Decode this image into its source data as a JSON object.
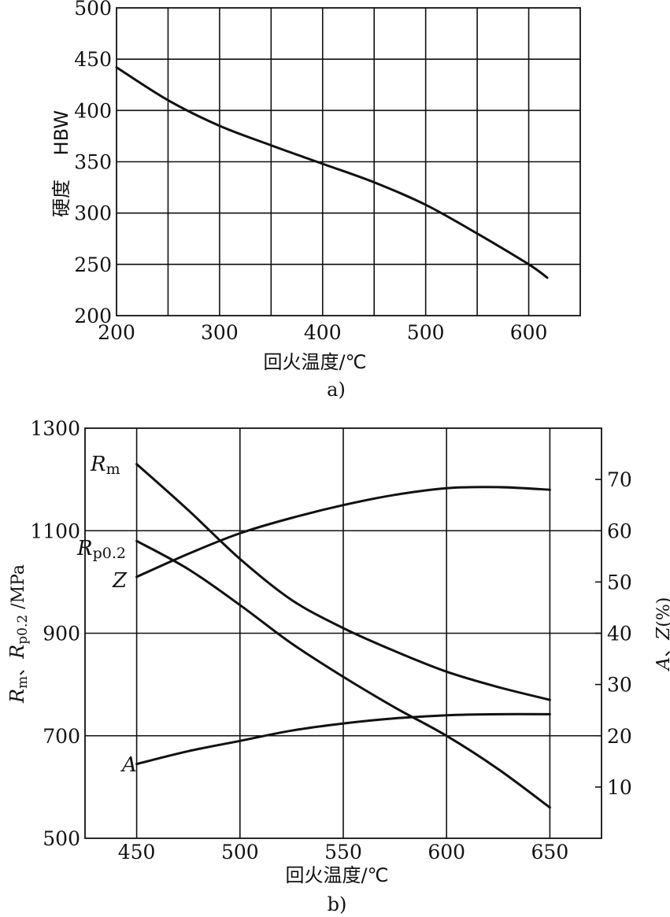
{
  "chart_data": [
    {
      "type": "line",
      "caption": "a)",
      "xlabel": "回火温度/℃",
      "ylabel": "硬度    HBW",
      "xlim": [
        200,
        650
      ],
      "ylim": [
        200,
        500
      ],
      "x_ticks": [
        200,
        300,
        400,
        500,
        600
      ],
      "y_ticks": [
        200,
        250,
        300,
        350,
        400,
        450,
        500
      ],
      "grid": true,
      "series": [
        {
          "x": [
            200,
            250,
            300,
            350,
            400,
            450,
            500,
            550,
            600,
            618
          ],
          "values": [
            442,
            410,
            385,
            366,
            348,
            330,
            308,
            280,
            250,
            237
          ]
        }
      ]
    },
    {
      "type": "line",
      "caption": "b)",
      "xlabel": "回火温度/℃",
      "ylabel_left": "Rm、Rp0.2/MPa",
      "ylabel_right": "A、Z(%)",
      "xlim": [
        425,
        675
      ],
      "ylim_left": [
        500,
        1300
      ],
      "ylim_right": [
        0,
        80
      ],
      "x_ticks": [
        450,
        500,
        550,
        600,
        650
      ],
      "y_ticks_left": [
        500,
        700,
        900,
        1100,
        1300
      ],
      "y_ticks_right": [
        10,
        20,
        30,
        40,
        50,
        60,
        70
      ],
      "grid": true,
      "series": [
        {
          "name": "Rm",
          "axis": "left",
          "x": [
            450,
            475,
            500,
            525,
            550,
            575,
            600,
            625,
            650
          ],
          "values": [
            1230,
            1140,
            1045,
            965,
            910,
            865,
            825,
            795,
            770
          ]
        },
        {
          "name": "Rp0.2",
          "axis": "left",
          "x": [
            450,
            475,
            500,
            525,
            550,
            575,
            600,
            625,
            650
          ],
          "values": [
            1080,
            1025,
            955,
            880,
            815,
            755,
            700,
            635,
            560
          ]
        },
        {
          "name": "Z",
          "axis": "right",
          "x": [
            450,
            475,
            500,
            525,
            550,
            575,
            600,
            625,
            650
          ],
          "values": [
            51,
            55.5,
            59.5,
            62.5,
            65,
            67,
            68.3,
            68.5,
            68
          ]
        },
        {
          "name": "A",
          "axis": "right",
          "x": [
            450,
            475,
            500,
            525,
            550,
            575,
            600,
            625,
            650
          ],
          "values": [
            14.5,
            17,
            19,
            21,
            22.4,
            23.4,
            24,
            24.2,
            24.2
          ]
        }
      ]
    }
  ]
}
